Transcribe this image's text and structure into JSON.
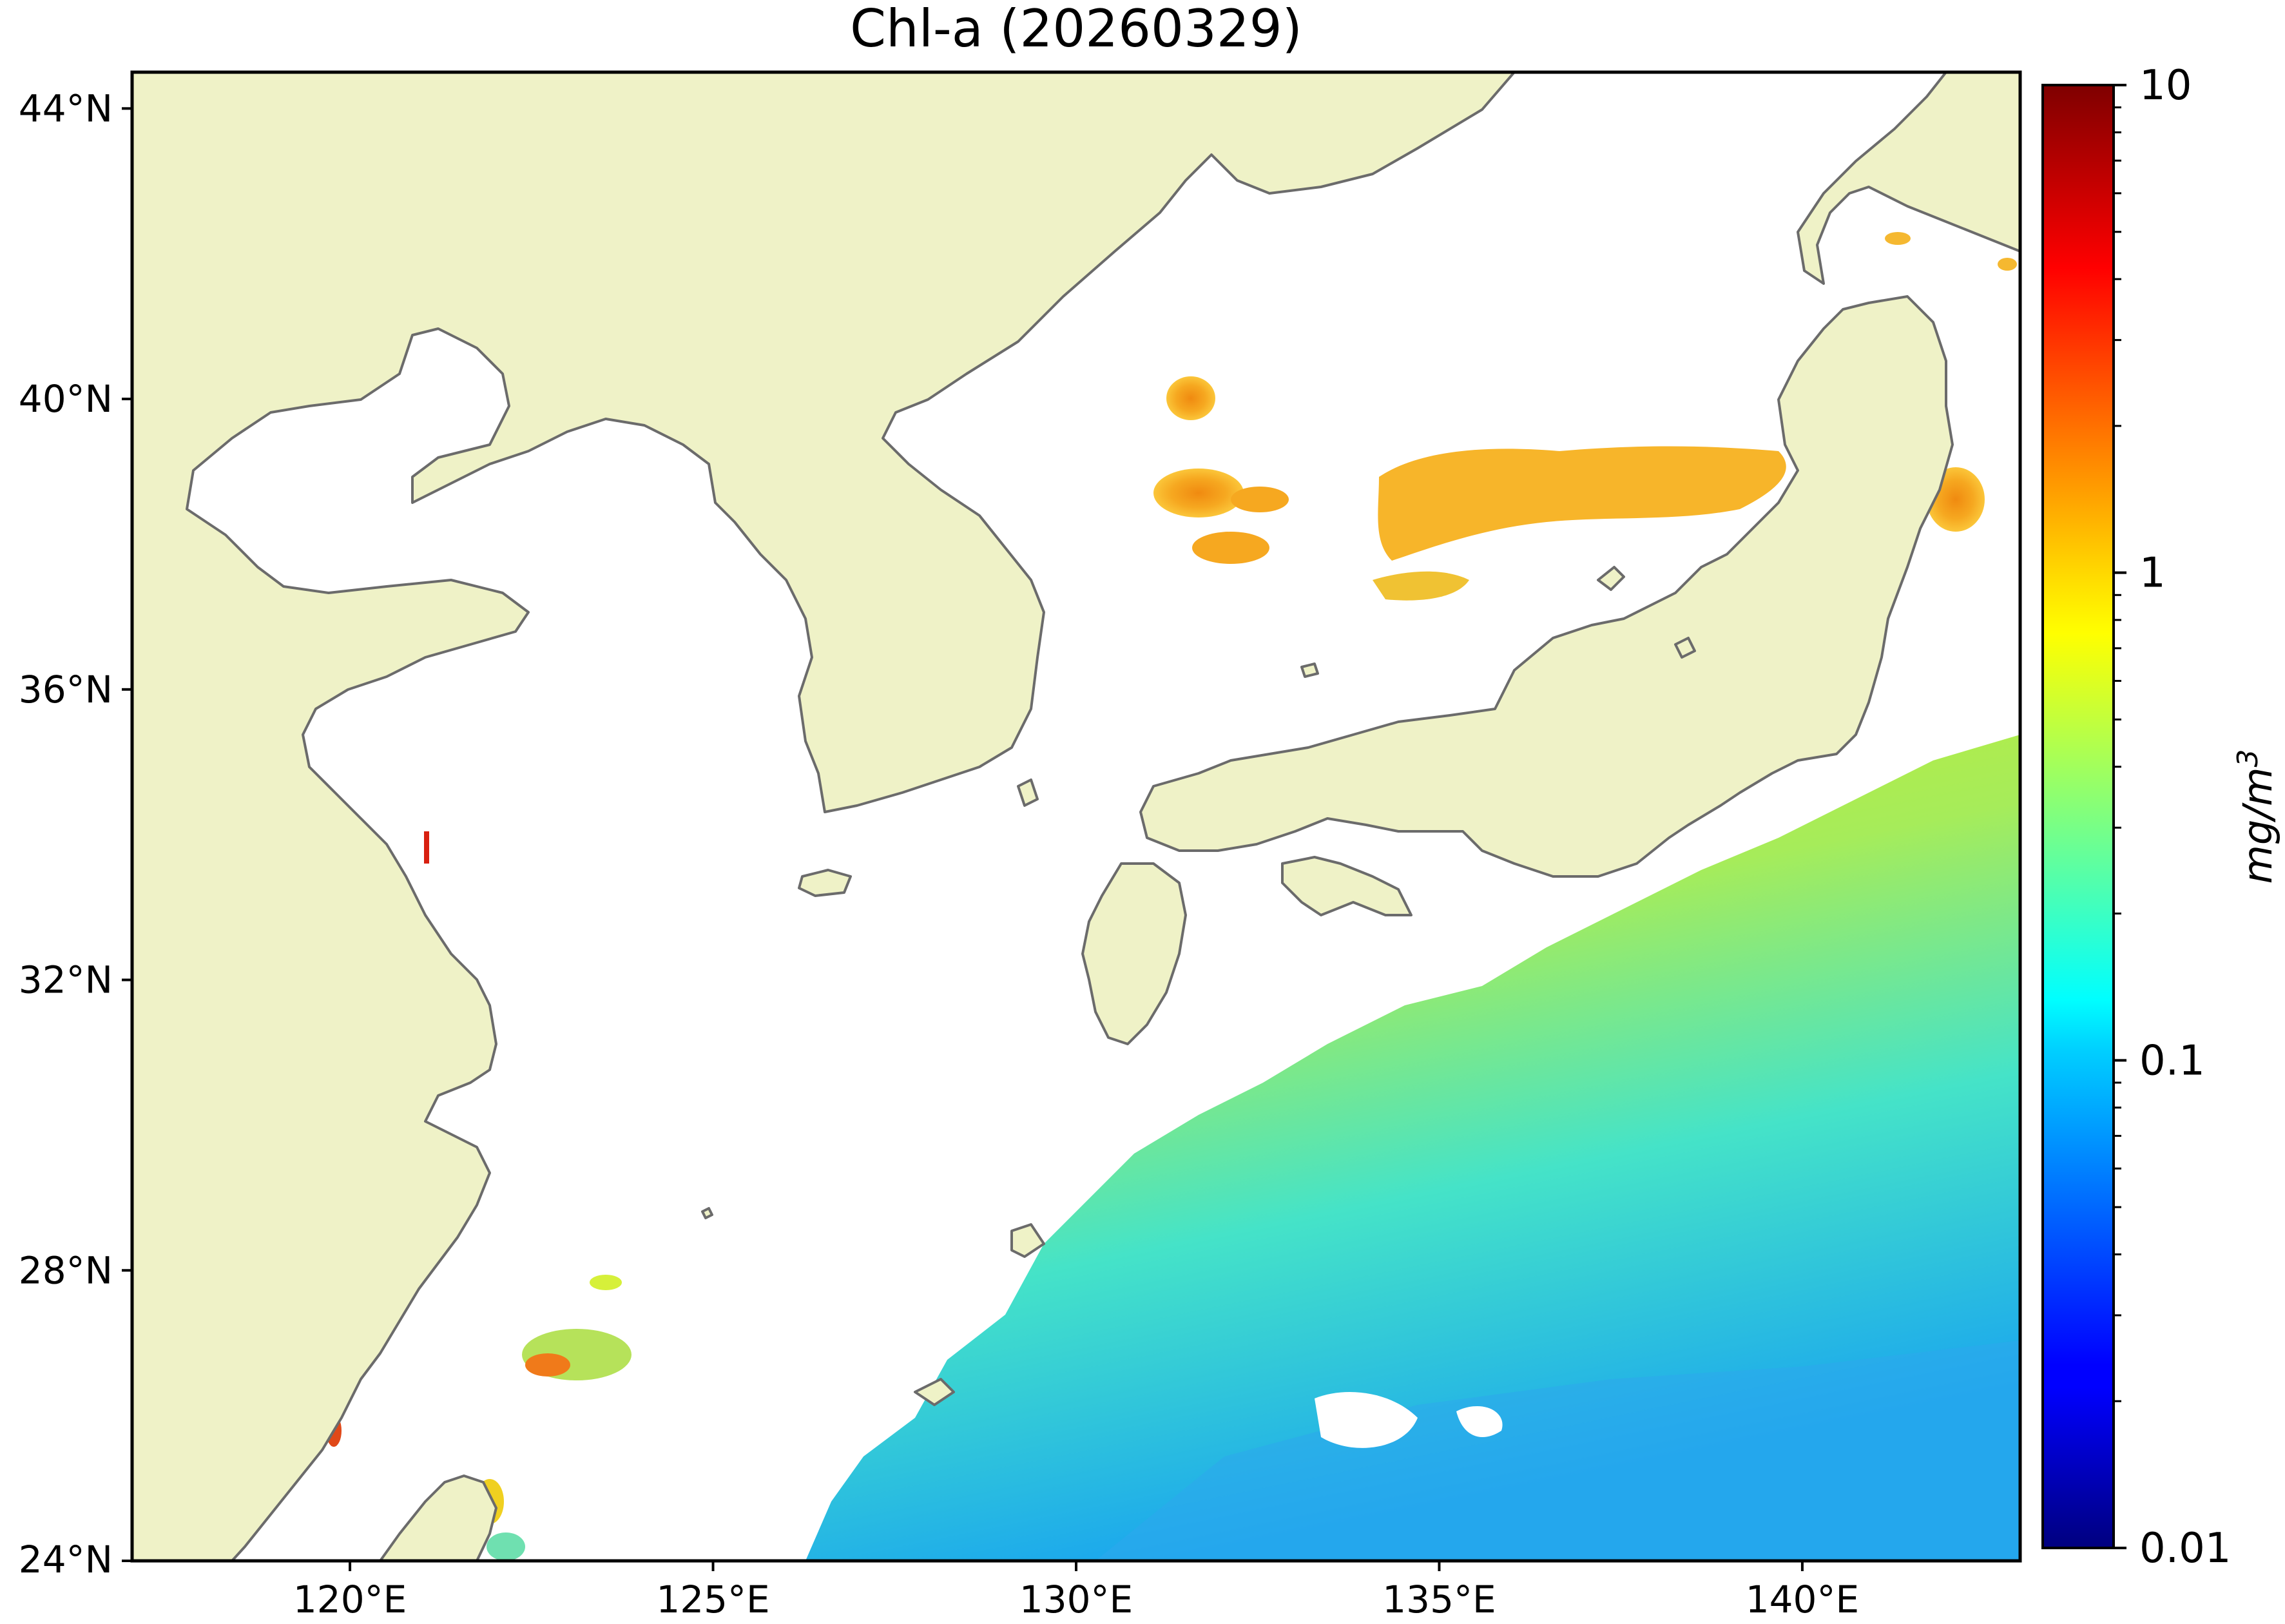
{
  "title": "Chl-a (20260329)",
  "map": {
    "lon_range": [
      117,
      143
    ],
    "lat_range": [
      24,
      44.5
    ],
    "lon_ticks": [
      "120°E",
      "125°E",
      "130°E",
      "135°E",
      "140°E"
    ],
    "lon_tick_values": [
      120,
      125,
      130,
      135,
      140
    ],
    "lat_ticks": [
      "44°N",
      "40°N",
      "36°N",
      "32°N",
      "28°N",
      "24°N"
    ],
    "lat_tick_values": [
      44,
      40,
      36,
      32,
      28,
      24
    ],
    "colors": {
      "land": "#eff2c7",
      "coast": "#6b6b6b",
      "no_data": "#ffffff"
    }
  },
  "colorbar": {
    "scale": "log",
    "range": [
      0.01,
      10
    ],
    "ticks": [
      "10",
      "1",
      "0.1",
      "0.01"
    ],
    "tick_values": [
      10,
      1,
      0.1,
      0.01
    ],
    "label": "mg/m",
    "label_superscript": "3",
    "colormap": "jet"
  }
}
